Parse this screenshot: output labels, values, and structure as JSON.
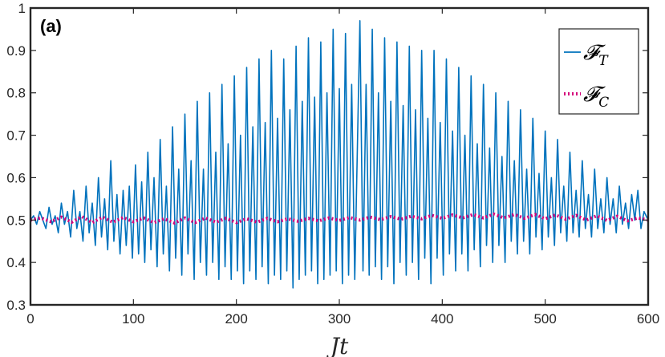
{
  "panel_label": "(a)",
  "chart_data": {
    "type": "line",
    "title": "",
    "xlabel": "Jt",
    "ylabel": "",
    "xlim": [
      0,
      600
    ],
    "ylim": [
      0.3,
      1.0
    ],
    "xticks": [
      0,
      100,
      200,
      300,
      400,
      500,
      600
    ],
    "yticks": [
      0.3,
      0.4,
      0.5,
      0.6,
      0.7,
      0.8,
      0.9,
      1
    ],
    "xtick_labels": [
      "0",
      "100",
      "200",
      "300",
      "400",
      "500",
      "600"
    ],
    "ytick_labels": [
      "0.3",
      "0.4",
      "0.5",
      "0.6",
      "0.7",
      "0.8",
      "0.9",
      "1"
    ],
    "grid": false,
    "legend_position": "top-right",
    "series": [
      {
        "name": "𝓕T",
        "legend_main": "𝓕",
        "legend_sub": "T",
        "color": "#0072BD",
        "style": "solid",
        "description": "fast oscillation centered near 0.5-0.6 with envelope peaking near Jt=320",
        "points": [
          [
            0,
            0.5
          ],
          [
            3,
            0.51
          ],
          [
            6,
            0.49
          ],
          [
            9,
            0.52
          ],
          [
            12,
            0.5
          ],
          [
            15,
            0.48
          ],
          [
            18,
            0.53
          ],
          [
            21,
            0.49
          ],
          [
            24,
            0.51
          ],
          [
            27,
            0.47
          ],
          [
            30,
            0.54
          ],
          [
            33,
            0.49
          ],
          [
            36,
            0.52
          ],
          [
            39,
            0.46
          ],
          [
            42,
            0.57
          ],
          [
            45,
            0.48
          ],
          [
            48,
            0.52
          ],
          [
            51,
            0.45
          ],
          [
            54,
            0.58
          ],
          [
            57,
            0.47
          ],
          [
            60,
            0.54
          ],
          [
            63,
            0.44
          ],
          [
            66,
            0.6
          ],
          [
            69,
            0.46
          ],
          [
            72,
            0.55
          ],
          [
            75,
            0.43
          ],
          [
            78,
            0.64
          ],
          [
            81,
            0.45
          ],
          [
            84,
            0.56
          ],
          [
            87,
            0.42
          ],
          [
            90,
            0.57
          ],
          [
            93,
            0.44
          ],
          [
            96,
            0.58
          ],
          [
            99,
            0.41
          ],
          [
            102,
            0.63
          ],
          [
            105,
            0.42
          ],
          [
            108,
            0.59
          ],
          [
            111,
            0.4
          ],
          [
            114,
            0.66
          ],
          [
            117,
            0.43
          ],
          [
            120,
            0.6
          ],
          [
            123,
            0.39
          ],
          [
            126,
            0.69
          ],
          [
            129,
            0.42
          ],
          [
            132,
            0.58
          ],
          [
            135,
            0.38
          ],
          [
            138,
            0.72
          ],
          [
            141,
            0.41
          ],
          [
            144,
            0.62
          ],
          [
            147,
            0.37
          ],
          [
            150,
            0.75
          ],
          [
            153,
            0.42
          ],
          [
            156,
            0.64
          ],
          [
            159,
            0.36
          ],
          [
            162,
            0.78
          ],
          [
            165,
            0.4
          ],
          [
            168,
            0.62
          ],
          [
            171,
            0.37
          ],
          [
            174,
            0.8
          ],
          [
            177,
            0.4
          ],
          [
            180,
            0.66
          ],
          [
            183,
            0.36
          ],
          [
            186,
            0.82
          ],
          [
            189,
            0.39
          ],
          [
            192,
            0.68
          ],
          [
            195,
            0.36
          ],
          [
            198,
            0.84
          ],
          [
            201,
            0.38
          ],
          [
            204,
            0.7
          ],
          [
            207,
            0.35
          ],
          [
            210,
            0.86
          ],
          [
            213,
            0.38
          ],
          [
            216,
            0.72
          ],
          [
            219,
            0.36
          ],
          [
            222,
            0.88
          ],
          [
            225,
            0.39
          ],
          [
            228,
            0.73
          ],
          [
            231,
            0.35
          ],
          [
            234,
            0.9
          ],
          [
            237,
            0.37
          ],
          [
            240,
            0.74
          ],
          [
            243,
            0.36
          ],
          [
            246,
            0.88
          ],
          [
            249,
            0.38
          ],
          [
            252,
            0.76
          ],
          [
            255,
            0.34
          ],
          [
            258,
            0.91
          ],
          [
            261,
            0.36
          ],
          [
            264,
            0.78
          ],
          [
            267,
            0.37
          ],
          [
            270,
            0.93
          ],
          [
            273,
            0.38
          ],
          [
            276,
            0.79
          ],
          [
            279,
            0.35
          ],
          [
            282,
            0.92
          ],
          [
            285,
            0.36
          ],
          [
            288,
            0.8
          ],
          [
            291,
            0.37
          ],
          [
            294,
            0.95
          ],
          [
            297,
            0.38
          ],
          [
            300,
            0.81
          ],
          [
            303,
            0.35
          ],
          [
            306,
            0.94
          ],
          [
            309,
            0.37
          ],
          [
            312,
            0.82
          ],
          [
            315,
            0.36
          ],
          [
            320,
            0.97
          ],
          [
            323,
            0.38
          ],
          [
            326,
            0.82
          ],
          [
            329,
            0.37
          ],
          [
            332,
            0.95
          ],
          [
            335,
            0.39
          ],
          [
            338,
            0.8
          ],
          [
            341,
            0.36
          ],
          [
            344,
            0.93
          ],
          [
            347,
            0.39
          ],
          [
            350,
            0.78
          ],
          [
            353,
            0.35
          ],
          [
            356,
            0.92
          ],
          [
            359,
            0.4
          ],
          [
            362,
            0.77
          ],
          [
            365,
            0.37
          ],
          [
            368,
            0.91
          ],
          [
            371,
            0.4
          ],
          [
            374,
            0.76
          ],
          [
            377,
            0.36
          ],
          [
            380,
            0.9
          ],
          [
            383,
            0.41
          ],
          [
            386,
            0.74
          ],
          [
            389,
            0.35
          ],
          [
            392,
            0.9
          ],
          [
            395,
            0.41
          ],
          [
            398,
            0.73
          ],
          [
            401,
            0.37
          ],
          [
            404,
            0.88
          ],
          [
            407,
            0.42
          ],
          [
            410,
            0.71
          ],
          [
            413,
            0.38
          ],
          [
            416,
            0.86
          ],
          [
            419,
            0.42
          ],
          [
            422,
            0.7
          ],
          [
            425,
            0.38
          ],
          [
            428,
            0.84
          ],
          [
            431,
            0.43
          ],
          [
            434,
            0.68
          ],
          [
            437,
            0.39
          ],
          [
            440,
            0.82
          ],
          [
            443,
            0.44
          ],
          [
            446,
            0.67
          ],
          [
            449,
            0.4
          ],
          [
            452,
            0.8
          ],
          [
            455,
            0.44
          ],
          [
            458,
            0.65
          ],
          [
            461,
            0.4
          ],
          [
            464,
            0.78
          ],
          [
            467,
            0.45
          ],
          [
            470,
            0.64
          ],
          [
            473,
            0.42
          ],
          [
            476,
            0.76
          ],
          [
            479,
            0.45
          ],
          [
            482,
            0.62
          ],
          [
            485,
            0.42
          ],
          [
            488,
            0.74
          ],
          [
            491,
            0.46
          ],
          [
            494,
            0.61
          ],
          [
            497,
            0.43
          ],
          [
            500,
            0.71
          ],
          [
            503,
            0.46
          ],
          [
            506,
            0.6
          ],
          [
            509,
            0.44
          ],
          [
            512,
            0.69
          ],
          [
            515,
            0.47
          ],
          [
            518,
            0.58
          ],
          [
            521,
            0.45
          ],
          [
            524,
            0.66
          ],
          [
            527,
            0.47
          ],
          [
            530,
            0.57
          ],
          [
            533,
            0.46
          ],
          [
            536,
            0.64
          ],
          [
            539,
            0.48
          ],
          [
            542,
            0.56
          ],
          [
            545,
            0.46
          ],
          [
            548,
            0.62
          ],
          [
            551,
            0.48
          ],
          [
            554,
            0.55
          ],
          [
            557,
            0.47
          ],
          [
            560,
            0.6
          ],
          [
            563,
            0.49
          ],
          [
            566,
            0.55
          ],
          [
            569,
            0.47
          ],
          [
            572,
            0.58
          ],
          [
            575,
            0.49
          ],
          [
            578,
            0.54
          ],
          [
            581,
            0.48
          ],
          [
            584,
            0.56
          ],
          [
            587,
            0.5
          ],
          [
            590,
            0.57
          ],
          [
            593,
            0.48
          ],
          [
            596,
            0.52
          ],
          [
            600,
            0.5
          ]
        ]
      },
      {
        "name": "𝓕C",
        "legend_main": "𝓕",
        "legend_sub": "C",
        "color": "#D4007A",
        "style": "dotted",
        "description": "small oscillation near 0.5",
        "points": [
          [
            0,
            0.5
          ],
          [
            10,
            0.505
          ],
          [
            20,
            0.496
          ],
          [
            30,
            0.507
          ],
          [
            40,
            0.495
          ],
          [
            50,
            0.508
          ],
          [
            60,
            0.494
          ],
          [
            70,
            0.507
          ],
          [
            80,
            0.495
          ],
          [
            90,
            0.506
          ],
          [
            100,
            0.496
          ],
          [
            110,
            0.505
          ],
          [
            120,
            0.494
          ],
          [
            130,
            0.503
          ],
          [
            140,
            0.493
          ],
          [
            150,
            0.505
          ],
          [
            160,
            0.494
          ],
          [
            170,
            0.505
          ],
          [
            180,
            0.495
          ],
          [
            190,
            0.504
          ],
          [
            200,
            0.494
          ],
          [
            210,
            0.503
          ],
          [
            220,
            0.495
          ],
          [
            230,
            0.504
          ],
          [
            240,
            0.496
          ],
          [
            250,
            0.503
          ],
          [
            260,
            0.497
          ],
          [
            270,
            0.504
          ],
          [
            280,
            0.498
          ],
          [
            290,
            0.505
          ],
          [
            300,
            0.499
          ],
          [
            310,
            0.506
          ],
          [
            320,
            0.5
          ],
          [
            330,
            0.507
          ],
          [
            340,
            0.501
          ],
          [
            350,
            0.508
          ],
          [
            360,
            0.502
          ],
          [
            370,
            0.509
          ],
          [
            380,
            0.503
          ],
          [
            390,
            0.511
          ],
          [
            400,
            0.504
          ],
          [
            410,
            0.512
          ],
          [
            420,
            0.505
          ],
          [
            430,
            0.513
          ],
          [
            440,
            0.505
          ],
          [
            450,
            0.514
          ],
          [
            460,
            0.505
          ],
          [
            470,
            0.513
          ],
          [
            480,
            0.504
          ],
          [
            490,
            0.513
          ],
          [
            500,
            0.503
          ],
          [
            510,
            0.512
          ],
          [
            520,
            0.502
          ],
          [
            530,
            0.511
          ],
          [
            540,
            0.5
          ],
          [
            550,
            0.51
          ],
          [
            560,
            0.499
          ],
          [
            570,
            0.509
          ],
          [
            580,
            0.498
          ],
          [
            590,
            0.505
          ],
          [
            600,
            0.5
          ]
        ]
      }
    ]
  }
}
